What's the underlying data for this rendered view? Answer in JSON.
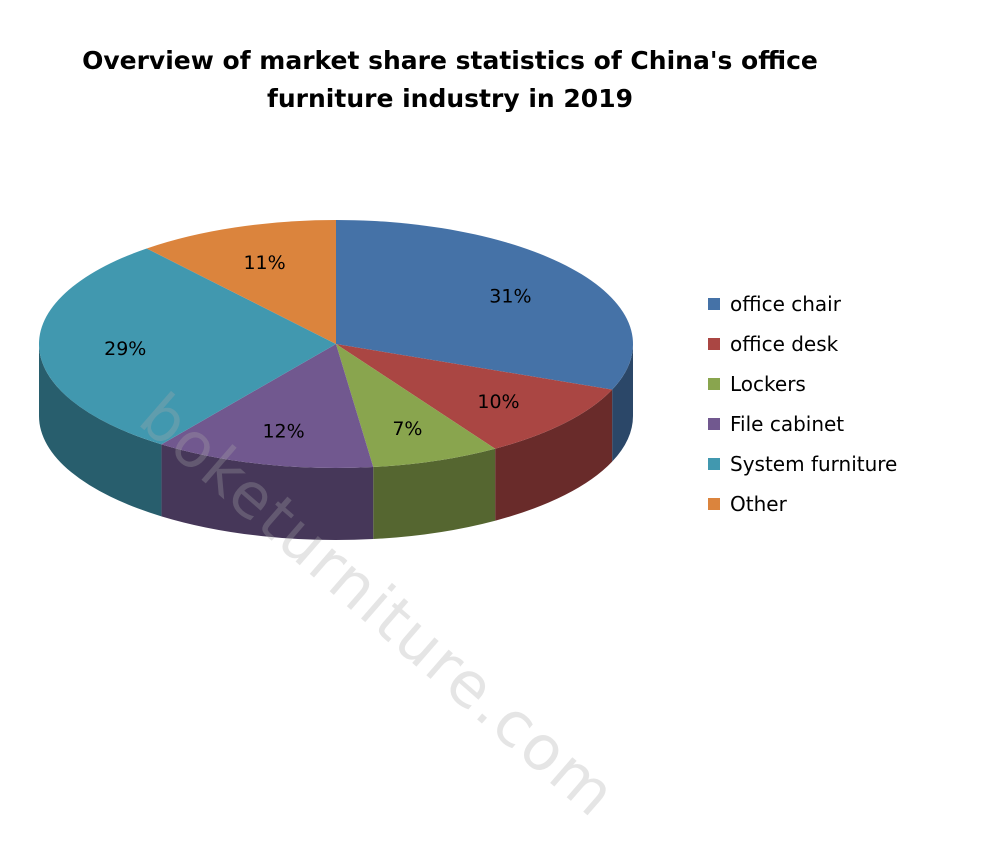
{
  "title_line1": "Overview of market share statistics of China's office",
  "title_line2": "furniture industry in 2019",
  "watermark": "boketurniture.com",
  "chart_data": {
    "type": "pie",
    "title": "Overview of market share statistics of China's office furniture industry in 2019",
    "legend_position": "right",
    "slices": [
      {
        "name": "office chair",
        "value": 31,
        "label": "31%",
        "color": "#4572A7"
      },
      {
        "name": "office desk",
        "value": 10,
        "label": "10%",
        "color": "#AA4643"
      },
      {
        "name": "Lockers",
        "value": 7,
        "label": "7%",
        "color": "#89A54E"
      },
      {
        "name": "File cabinet",
        "value": 12,
        "label": "12%",
        "color": "#71588F"
      },
      {
        "name": "System furniture",
        "value": 29,
        "label": "29%",
        "color": "#4198AF"
      },
      {
        "name": "Other",
        "value": 11,
        "label": "11%",
        "color": "#DB843D"
      }
    ]
  }
}
